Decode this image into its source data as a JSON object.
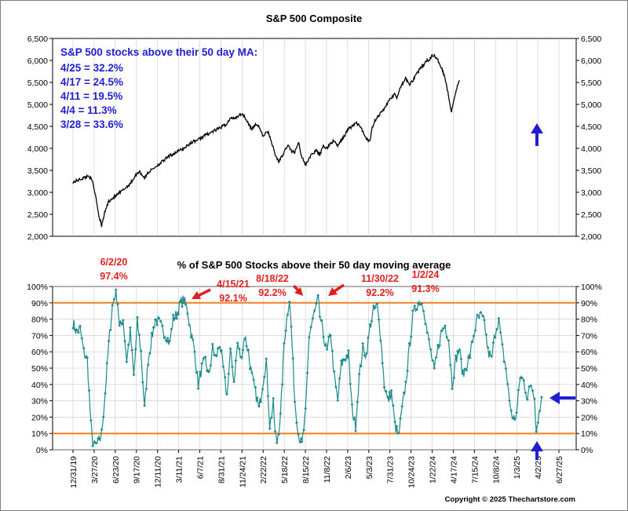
{
  "chart_data": [
    {
      "type": "line",
      "title": "S&P 500 Composite",
      "ylim": [
        2000,
        6500
      ],
      "yticks": [
        2000,
        2500,
        3000,
        3500,
        4000,
        4500,
        5000,
        5500,
        6000,
        6500
      ],
      "ytick_labels": [
        "2,000",
        "2,500",
        "3,000",
        "3,500",
        "4,000",
        "4,500",
        "5,000",
        "5,500",
        "6,000",
        "6,500"
      ],
      "series": [
        {
          "name": "S&P 500",
          "points": [
            [
              0,
              3230
            ],
            [
              0.03,
              3330
            ],
            [
              0.045,
              3380
            ],
            [
              0.055,
              3230
            ],
            [
              0.065,
              2850
            ],
            [
              0.072,
              2480
            ],
            [
              0.08,
              2240
            ],
            [
              0.09,
              2580
            ],
            [
              0.1,
              2800
            ],
            [
              0.12,
              2920
            ],
            [
              0.14,
              3050
            ],
            [
              0.16,
              3200
            ],
            [
              0.175,
              3380
            ],
            [
              0.185,
              3480
            ],
            [
              0.2,
              3330
            ],
            [
              0.21,
              3450
            ],
            [
              0.23,
              3580
            ],
            [
              0.25,
              3700
            ],
            [
              0.27,
              3830
            ],
            [
              0.29,
              3920
            ],
            [
              0.31,
              4000
            ],
            [
              0.33,
              4130
            ],
            [
              0.35,
              4200
            ],
            [
              0.37,
              4300
            ],
            [
              0.39,
              4380
            ],
            [
              0.41,
              4460
            ],
            [
              0.43,
              4560
            ],
            [
              0.44,
              4680
            ],
            [
              0.455,
              4700
            ],
            [
              0.47,
              4790
            ],
            [
              0.48,
              4720
            ],
            [
              0.49,
              4580
            ],
            [
              0.5,
              4420
            ],
            [
              0.51,
              4550
            ],
            [
              0.52,
              4500
            ],
            [
              0.53,
              4280
            ],
            [
              0.545,
              4380
            ],
            [
              0.555,
              4150
            ],
            [
              0.565,
              3850
            ],
            [
              0.575,
              3700
            ],
            [
              0.585,
              3820
            ],
            [
              0.6,
              4080
            ],
            [
              0.61,
              3950
            ],
            [
              0.62,
              3900
            ],
            [
              0.63,
              4150
            ],
            [
              0.64,
              3800
            ],
            [
              0.65,
              3620
            ],
            [
              0.66,
              3780
            ],
            [
              0.67,
              3880
            ],
            [
              0.68,
              3950
            ],
            [
              0.69,
              3850
            ],
            [
              0.7,
              4050
            ],
            [
              0.71,
              4000
            ],
            [
              0.72,
              4120
            ],
            [
              0.73,
              4170
            ],
            [
              0.74,
              4050
            ],
            [
              0.75,
              4180
            ],
            [
              0.76,
              4300
            ],
            [
              0.77,
              4450
            ],
            [
              0.78,
              4500
            ],
            [
              0.79,
              4580
            ],
            [
              0.8,
              4530
            ],
            [
              0.81,
              4380
            ],
            [
              0.82,
              4230
            ],
            [
              0.83,
              4150
            ],
            [
              0.835,
              4450
            ],
            [
              0.845,
              4650
            ],
            [
              0.86,
              4800
            ],
            [
              0.87,
              4900
            ],
            [
              0.88,
              5050
            ],
            [
              0.89,
              5150
            ],
            [
              0.9,
              5250
            ],
            [
              0.905,
              5100
            ],
            [
              0.915,
              5400
            ],
            [
              0.925,
              5500
            ],
            [
              0.93,
              5600
            ],
            [
              0.94,
              5450
            ],
            [
              0.95,
              5550
            ],
            [
              0.96,
              5700
            ],
            [
              0.97,
              5800
            ],
            [
              0.98,
              5900
            ],
            [
              0.99,
              6000
            ],
            [
              1,
              6050
            ],
            [
              1.005,
              6130
            ],
            [
              1.01,
              6100
            ],
            [
              1.02,
              6000
            ],
            [
              1.03,
              5850
            ],
            [
              1.04,
              5600
            ],
            [
              1.045,
              5400
            ],
            [
              1.055,
              4950
            ],
            [
              1.058,
              4850
            ],
            [
              1.07,
              5300
            ],
            [
              1.08,
              5550
            ]
          ]
        }
      ],
      "annotations": {
        "heading": "S&P 500 stocks above their 50 day MA:",
        "lines": [
          "4/25 = 32.2%",
          "4/17 = 24.5%",
          "4/11 = 19.5%",
          "4/4 = 11.3%",
          "3/28 = 33.6%"
        ]
      }
    },
    {
      "type": "line",
      "title": "% of S&P 500 Stocks above their 50 day moving average",
      "ylim": [
        0,
        100
      ],
      "yticks": [
        0,
        10,
        20,
        30,
        40,
        50,
        60,
        70,
        80,
        90,
        100
      ],
      "ytick_labels": [
        "0%",
        "10%",
        "20%",
        "30%",
        "40%",
        "50%",
        "60%",
        "70%",
        "80%",
        "90%",
        "100%"
      ],
      "reference_lines": [
        10,
        90
      ],
      "xtick_labels": [
        "12/31/19",
        "3/27/20",
        "6/23/20",
        "9/17/20",
        "12/11/20",
        "3/11/21",
        "6/7/21",
        "8/31/21",
        "11/24/21",
        "2/22/22",
        "5/18/22",
        "8/15/22",
        "11/8/22",
        "2/6/23",
        "5/3/23",
        "7/31/23",
        "10/24/23",
        "1/22/24",
        "4/17/24",
        "7/15/24",
        "10/8/24",
        "1/3/25",
        "4/2/25",
        "6/27/25"
      ],
      "series": [
        {
          "name": "% above 50 day MA",
          "points": [
            [
              0,
              78
            ],
            [
              0.01,
              72
            ],
            [
              0.02,
              74
            ],
            [
              0.03,
              60
            ],
            [
              0.04,
              55
            ],
            [
              0.05,
              15
            ],
            [
              0.055,
              5
            ],
            [
              0.06,
              2
            ],
            [
              0.07,
              4
            ],
            [
              0.08,
              10
            ],
            [
              0.09,
              35
            ],
            [
              0.1,
              65
            ],
            [
              0.11,
              88
            ],
            [
              0.12,
              97.4
            ],
            [
              0.125,
              90
            ],
            [
              0.13,
              75
            ],
            [
              0.14,
              80
            ],
            [
              0.15,
              55
            ],
            [
              0.16,
              72
            ],
            [
              0.17,
              45
            ],
            [
              0.18,
              78
            ],
            [
              0.19,
              60
            ],
            [
              0.2,
              25
            ],
            [
              0.21,
              55
            ],
            [
              0.22,
              68
            ],
            [
              0.23,
              80
            ],
            [
              0.24,
              78
            ],
            [
              0.25,
              74
            ],
            [
              0.26,
              70
            ],
            [
              0.27,
              65
            ],
            [
              0.28,
              80
            ],
            [
              0.29,
              83
            ],
            [
              0.3,
              90
            ],
            [
              0.31,
              92.1
            ],
            [
              0.32,
              85
            ],
            [
              0.33,
              72
            ],
            [
              0.34,
              60
            ],
            [
              0.35,
              40
            ],
            [
              0.36,
              50
            ],
            [
              0.37,
              55
            ],
            [
              0.38,
              45
            ],
            [
              0.39,
              62
            ],
            [
              0.4,
              56
            ],
            [
              0.41,
              65
            ],
            [
              0.42,
              50
            ],
            [
              0.43,
              33
            ],
            [
              0.44,
              60
            ],
            [
              0.45,
              42
            ],
            [
              0.46,
              65
            ],
            [
              0.47,
              55
            ],
            [
              0.48,
              70
            ],
            [
              0.49,
              60
            ],
            [
              0.5,
              45
            ],
            [
              0.51,
              35
            ],
            [
              0.52,
              25
            ],
            [
              0.53,
              40
            ],
            [
              0.54,
              55
            ],
            [
              0.55,
              15
            ],
            [
              0.56,
              28
            ],
            [
              0.565,
              10
            ],
            [
              0.57,
              5
            ],
            [
              0.58,
              20
            ],
            [
              0.59,
              65
            ],
            [
              0.6,
              85
            ],
            [
              0.605,
              92.2
            ],
            [
              0.61,
              75
            ],
            [
              0.62,
              30
            ],
            [
              0.63,
              10
            ],
            [
              0.64,
              3
            ],
            [
              0.65,
              22
            ],
            [
              0.66,
              70
            ],
            [
              0.67,
              80
            ],
            [
              0.68,
              88
            ],
            [
              0.685,
              92.2
            ],
            [
              0.69,
              82
            ],
            [
              0.7,
              70
            ],
            [
              0.71,
              60
            ],
            [
              0.72,
              72
            ],
            [
              0.73,
              45
            ],
            [
              0.74,
              30
            ],
            [
              0.75,
              52
            ],
            [
              0.76,
              56
            ],
            [
              0.77,
              58
            ],
            [
              0.78,
              25
            ],
            [
              0.79,
              15
            ],
            [
              0.8,
              45
            ],
            [
              0.81,
              62
            ],
            [
              0.82,
              58
            ],
            [
              0.83,
              75
            ],
            [
              0.84,
              85
            ],
            [
              0.85,
              88
            ],
            [
              0.86,
              70
            ],
            [
              0.87,
              40
            ],
            [
              0.88,
              30
            ],
            [
              0.89,
              35
            ],
            [
              0.9,
              15
            ],
            [
              0.91,
              8
            ],
            [
              0.92,
              25
            ],
            [
              0.93,
              40
            ],
            [
              0.94,
              62
            ],
            [
              0.95,
              82
            ],
            [
              0.96,
              88
            ],
            [
              0.97,
              91.3
            ],
            [
              0.98,
              88
            ],
            [
              0.99,
              72
            ],
            [
              1,
              60
            ],
            [
              1.01,
              48
            ],
            [
              1.02,
              62
            ],
            [
              1.03,
              72
            ],
            [
              1.04,
              76
            ],
            [
              1.05,
              68
            ],
            [
              1.06,
              40
            ],
            [
              1.07,
              55
            ],
            [
              1.08,
              62
            ],
            [
              1.09,
              45
            ],
            [
              1.1,
              52
            ],
            [
              1.11,
              58
            ],
            [
              1.12,
              70
            ],
            [
              1.13,
              80
            ],
            [
              1.14,
              82
            ],
            [
              1.15,
              78
            ],
            [
              1.16,
              60
            ],
            [
              1.17,
              55
            ],
            [
              1.18,
              72
            ],
            [
              1.19,
              80
            ],
            [
              1.2,
              62
            ],
            [
              1.21,
              50
            ],
            [
              1.22,
              30
            ],
            [
              1.23,
              18
            ],
            [
              1.24,
              22
            ],
            [
              1.25,
              45
            ],
            [
              1.26,
              42
            ],
            [
              1.27,
              32
            ],
            [
              1.28,
              40
            ],
            [
              1.29,
              33.6
            ],
            [
              1.295,
              11.3
            ],
            [
              1.3,
              19.5
            ],
            [
              1.305,
              24.5
            ],
            [
              1.31,
              32.2
            ]
          ]
        }
      ],
      "annotations": [
        {
          "date": "6/2/20",
          "value_label": "97.4%",
          "value": 97.4
        },
        {
          "date": "4/15/21",
          "value_label": "92.1%",
          "value": 92.1
        },
        {
          "date": "8/18/22",
          "value_label": "92.2%",
          "value": 92.2
        },
        {
          "date": "11/30/22",
          "value_label": "92.2%",
          "value": 92.2
        },
        {
          "date": "1/2/24",
          "value_label": "91.3%",
          "value": 91.3
        }
      ]
    }
  ],
  "copyright": "Copyright © 2025 Thechartstore.com",
  "colors": {
    "price_line": "#000000",
    "breadth_line": "#1a8a8a",
    "reference_line": "#f08020",
    "blue_text": "#1f1fcf",
    "red_text": "#e02020",
    "arrow_blue": "#1f1fcf",
    "arrow_red": "#e02020",
    "grid": "#c8c8c8"
  }
}
